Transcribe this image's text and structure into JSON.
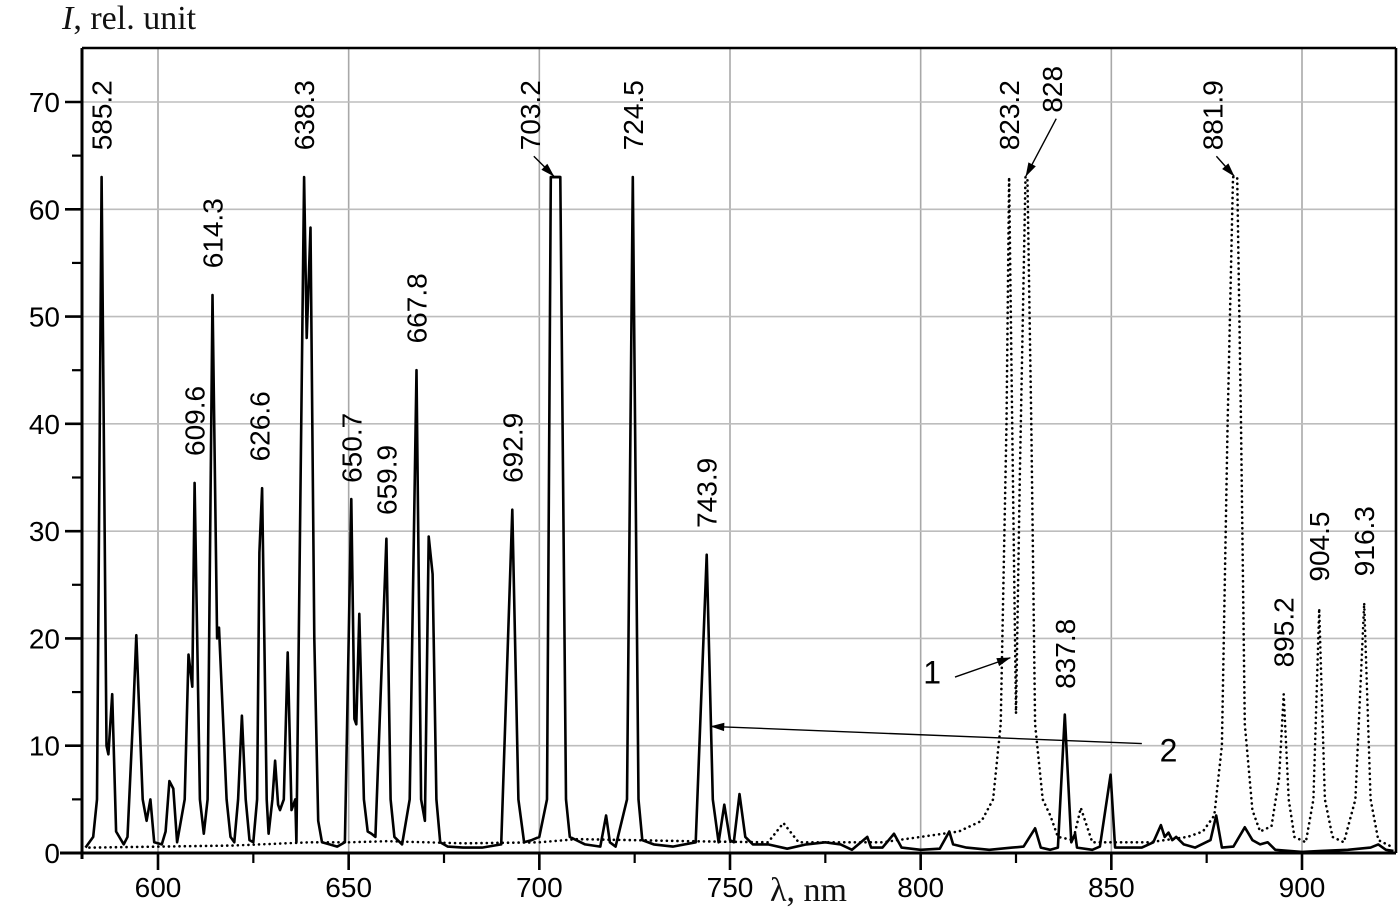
{
  "chart_data": {
    "type": "line",
    "title": "",
    "xlabel": "λ, nm",
    "ylabel_symbol": "I",
    "ylabel": ", rel. unit",
    "xlim": [
      580,
      925
    ],
    "ylim": [
      0,
      75
    ],
    "x_ticks": [
      600,
      650,
      700,
      750,
      800,
      850,
      900
    ],
    "x_minor_ticks": [
      625,
      675,
      725,
      775,
      825,
      875
    ],
    "y_ticks": [
      0,
      10,
      20,
      30,
      40,
      50,
      60,
      70
    ],
    "y_minor_ticks": [
      5,
      15,
      25,
      35,
      45,
      55,
      65
    ],
    "grid": true,
    "series": [
      {
        "name": "1",
        "style": "dotted",
        "description": "Spectrum 1 (dotted): low baseline with strong near-IR lines",
        "points": [
          [
            582,
            0.5
          ],
          [
            600,
            0.6
          ],
          [
            620,
            0.7
          ],
          [
            640,
            1.0
          ],
          [
            650,
            1.0
          ],
          [
            660,
            1.1
          ],
          [
            680,
            0.9
          ],
          [
            700,
            1.0
          ],
          [
            710,
            1.3
          ],
          [
            740,
            1.1
          ],
          [
            760,
            1.0
          ],
          [
            764,
            2.8
          ],
          [
            768,
            1.0
          ],
          [
            790,
            1.0
          ],
          [
            800,
            1.5
          ],
          [
            810,
            2.0
          ],
          [
            816,
            3.0
          ],
          [
            819,
            5.0
          ],
          [
            821,
            12
          ],
          [
            822.5,
            40
          ],
          [
            823.2,
            63
          ],
          [
            824,
            40
          ],
          [
            825,
            13
          ],
          [
            826,
            35
          ],
          [
            827.5,
            63
          ],
          [
            828,
            63
          ],
          [
            829,
            40
          ],
          [
            830,
            12
          ],
          [
            832,
            5
          ],
          [
            834,
            3.5
          ],
          [
            836,
            1.5
          ],
          [
            840,
            1.2
          ],
          [
            842,
            4.2
          ],
          [
            845,
            1.0
          ],
          [
            860,
            1.0
          ],
          [
            870,
            1.5
          ],
          [
            874,
            2.0
          ],
          [
            877,
            3.5
          ],
          [
            879,
            10
          ],
          [
            880.5,
            40
          ],
          [
            881.9,
            63
          ],
          [
            883,
            63
          ],
          [
            884,
            40
          ],
          [
            885,
            12
          ],
          [
            887,
            4
          ],
          [
            889,
            2
          ],
          [
            892,
            2.5
          ],
          [
            894,
            7
          ],
          [
            895.2,
            14.8
          ],
          [
            896.5,
            5
          ],
          [
            898,
            1.5
          ],
          [
            901,
            1.0
          ],
          [
            903,
            5
          ],
          [
            904.5,
            22.8
          ],
          [
            906,
            5
          ],
          [
            908,
            1.5
          ],
          [
            911,
            1.0
          ],
          [
            914,
            5
          ],
          [
            916.3,
            23.3
          ],
          [
            918,
            5
          ],
          [
            920,
            1.2
          ],
          [
            924,
            0.5
          ]
        ]
      },
      {
        "name": "2",
        "style": "solid",
        "description": "Spectrum 2 (solid): many visible-range lines",
        "points": [
          [
            581,
            0.5
          ],
          [
            583,
            1.5
          ],
          [
            584,
            5
          ],
          [
            585.2,
            63
          ],
          [
            586.5,
            10
          ],
          [
            587,
            9.2
          ],
          [
            588,
            14.8
          ],
          [
            589,
            2
          ],
          [
            591,
            0.8
          ],
          [
            592,
            1.5
          ],
          [
            593.5,
            13
          ],
          [
            594.3,
            20.3
          ],
          [
            595,
            14
          ],
          [
            596,
            5
          ],
          [
            597,
            3
          ],
          [
            598,
            5
          ],
          [
            599,
            1
          ],
          [
            601,
            0.8
          ],
          [
            602,
            2
          ],
          [
            603,
            6.7
          ],
          [
            604,
            6
          ],
          [
            605,
            1
          ],
          [
            607,
            5
          ],
          [
            608,
            18.5
          ],
          [
            609,
            15.5
          ],
          [
            609.6,
            34.5
          ],
          [
            611,
            5
          ],
          [
            612,
            1.8
          ],
          [
            613,
            5
          ],
          [
            614.3,
            52
          ],
          [
            615.5,
            20
          ],
          [
            616,
            21
          ],
          [
            618,
            5
          ],
          [
            619,
            1.5
          ],
          [
            620,
            1
          ],
          [
            621,
            5
          ],
          [
            622,
            12.8
          ],
          [
            623,
            5
          ],
          [
            624,
            1.2
          ],
          [
            625,
            1
          ],
          [
            626,
            5
          ],
          [
            626.6,
            28
          ],
          [
            627.3,
            34
          ],
          [
            628.5,
            5
          ],
          [
            629,
            1.8
          ],
          [
            630,
            5
          ],
          [
            630.7,
            8.6
          ],
          [
            631.5,
            4.5
          ],
          [
            632,
            4
          ],
          [
            633,
            5
          ],
          [
            634,
            18.7
          ],
          [
            635,
            4
          ],
          [
            636,
            5
          ],
          [
            636.3,
            1
          ],
          [
            638.3,
            63
          ],
          [
            639,
            48
          ],
          [
            640,
            58.3
          ],
          [
            641,
            20
          ],
          [
            642,
            3
          ],
          [
            643,
            1.0
          ],
          [
            645,
            0.8
          ],
          [
            647,
            0.6
          ],
          [
            649,
            1.0
          ],
          [
            650.7,
            33
          ],
          [
            651.5,
            12.5
          ],
          [
            652,
            12
          ],
          [
            652.8,
            22.3
          ],
          [
            654,
            5
          ],
          [
            655,
            2
          ],
          [
            656,
            1.8
          ],
          [
            657,
            1.5
          ],
          [
            659.9,
            29.3
          ],
          [
            661,
            5
          ],
          [
            662,
            1.5
          ],
          [
            664,
            0.8
          ],
          [
            666,
            5
          ],
          [
            667.8,
            45
          ],
          [
            669,
            5
          ],
          [
            670,
            3
          ],
          [
            671,
            29.5
          ],
          [
            672,
            26
          ],
          [
            673,
            5
          ],
          [
            674,
            1
          ],
          [
            676,
            0.6
          ],
          [
            680,
            0.5
          ],
          [
            685,
            0.5
          ],
          [
            690,
            0.8
          ],
          [
            692.9,
            32
          ],
          [
            694.5,
            5
          ],
          [
            696,
            1
          ],
          [
            698,
            1.2
          ],
          [
            700,
            1.5
          ],
          [
            702,
            5
          ],
          [
            703,
            63
          ],
          [
            705.5,
            63
          ],
          [
            707,
            5
          ],
          [
            708,
            1.5
          ],
          [
            712,
            0.8
          ],
          [
            716,
            0.6
          ],
          [
            717.5,
            3.5
          ],
          [
            718.5,
            1
          ],
          [
            720,
            0.6
          ],
          [
            723,
            5
          ],
          [
            724.5,
            63
          ],
          [
            726,
            5
          ],
          [
            727,
            1.2
          ],
          [
            730,
            0.8
          ],
          [
            735,
            0.6
          ],
          [
            741,
            1
          ],
          [
            743.9,
            27.8
          ],
          [
            745.5,
            5
          ],
          [
            747,
            1
          ],
          [
            748.5,
            4.5
          ],
          [
            750,
            1.2
          ],
          [
            751,
            1
          ],
          [
            752.5,
            5.5
          ],
          [
            754,
            1.5
          ],
          [
            756,
            0.8
          ],
          [
            760,
            0.8
          ],
          [
            765,
            0.4
          ],
          [
            770,
            0.8
          ],
          [
            775,
            1.0
          ],
          [
            779,
            0.8
          ],
          [
            782,
            0.3
          ],
          [
            786,
            1.5
          ],
          [
            787,
            0.5
          ],
          [
            790,
            0.5
          ],
          [
            793,
            1.8
          ],
          [
            795,
            0.5
          ],
          [
            800,
            0.3
          ],
          [
            805,
            0.4
          ],
          [
            807.5,
            2
          ],
          [
            808.5,
            0.8
          ],
          [
            812,
            0.5
          ],
          [
            818,
            0.3
          ],
          [
            824,
            0.5
          ],
          [
            827,
            0.6
          ],
          [
            830,
            2.3
          ],
          [
            831.5,
            0.5
          ],
          [
            834,
            0.3
          ],
          [
            836,
            0.5
          ],
          [
            837.8,
            12.9
          ],
          [
            839.5,
            1
          ],
          [
            840.5,
            1.8
          ],
          [
            841,
            0.5
          ],
          [
            845,
            0.3
          ],
          [
            847,
            0.6
          ],
          [
            849.8,
            7.3
          ],
          [
            851,
            0.5
          ],
          [
            855,
            0.5
          ],
          [
            858,
            0.5
          ],
          [
            861,
            1
          ],
          [
            863,
            2.6
          ],
          [
            864,
            1.5
          ],
          [
            865,
            1.9
          ],
          [
            866,
            1.2
          ],
          [
            867,
            1.5
          ],
          [
            869,
            0.8
          ],
          [
            872,
            0.5
          ],
          [
            876,
            1.2
          ],
          [
            877.5,
            3.5
          ],
          [
            879,
            0.5
          ],
          [
            882,
            0.6
          ],
          [
            885,
            2.4
          ],
          [
            887,
            1.2
          ],
          [
            889,
            0.8
          ],
          [
            891,
            1
          ],
          [
            893,
            0.3
          ],
          [
            900,
            0.1
          ],
          [
            905,
            0.2
          ],
          [
            912,
            0.3
          ],
          [
            918,
            0.5
          ],
          [
            920,
            0.8
          ],
          [
            922,
            0.3
          ],
          [
            924,
            0.2
          ]
        ]
      }
    ],
    "peak_labels": [
      {
        "text": "585.2",
        "x": 585.2,
        "y_label": 65.5
      },
      {
        "text": "614.3",
        "x": 614.3,
        "y_label": 54.5
      },
      {
        "text": "609.6",
        "x": 609.6,
        "y_label": 37
      },
      {
        "text": "626.6",
        "x": 626.6,
        "y_label": 36.5
      },
      {
        "text": "638.3",
        "x": 638.3,
        "y_label": 65.5
      },
      {
        "text": "650.7",
        "x": 650.7,
        "y_label": 34.5
      },
      {
        "text": "659.9",
        "x": 659.9,
        "y_label": 31.5
      },
      {
        "text": "667.8",
        "x": 667.8,
        "y_label": 47.5
      },
      {
        "text": "692.9",
        "x": 692.9,
        "y_label": 34.5
      },
      {
        "text": "703.2",
        "x": 697.5,
        "y_label": 65.5,
        "arrow_to": [
          703.8,
          63
        ]
      },
      {
        "text": "724.5",
        "x": 724.5,
        "y_label": 65.5
      },
      {
        "text": "743.9",
        "x": 743.9,
        "y_label": 30.3
      },
      {
        "text": "823.2",
        "x": 823.2,
        "y_label": 65.5
      },
      {
        "text": "828",
        "x": 834.5,
        "y_label": 69,
        "arrow_to": [
          827.6,
          63
        ]
      },
      {
        "text": "837.8",
        "x": 837.8,
        "y_label": 15.3
      },
      {
        "text": "881.9",
        "x": 876.5,
        "y_label": 65.5,
        "arrow_to": [
          882.2,
          63
        ]
      },
      {
        "text": "895.2",
        "x": 895.2,
        "y_label": 17.3
      },
      {
        "text": "904.5",
        "x": 904.5,
        "y_label": 25.3
      },
      {
        "text": "916.3",
        "x": 916.3,
        "y_label": 25.8
      }
    ],
    "annotations": [
      {
        "text": "1",
        "at": [
          803,
          17.3
        ],
        "arrow_from": [
          809,
          16.4
        ],
        "arrow_to": [
          823.5,
          18.2
        ]
      },
      {
        "text": "2",
        "at": [
          865,
          10
        ],
        "arrow_from": [
          858,
          10.2
        ],
        "arrow_to": [
          745,
          11.8
        ]
      }
    ]
  },
  "axes": {
    "ylabel_symbol": "I",
    "ylabel_rest": ", rel. unit",
    "xlabel": "λ, nm"
  }
}
